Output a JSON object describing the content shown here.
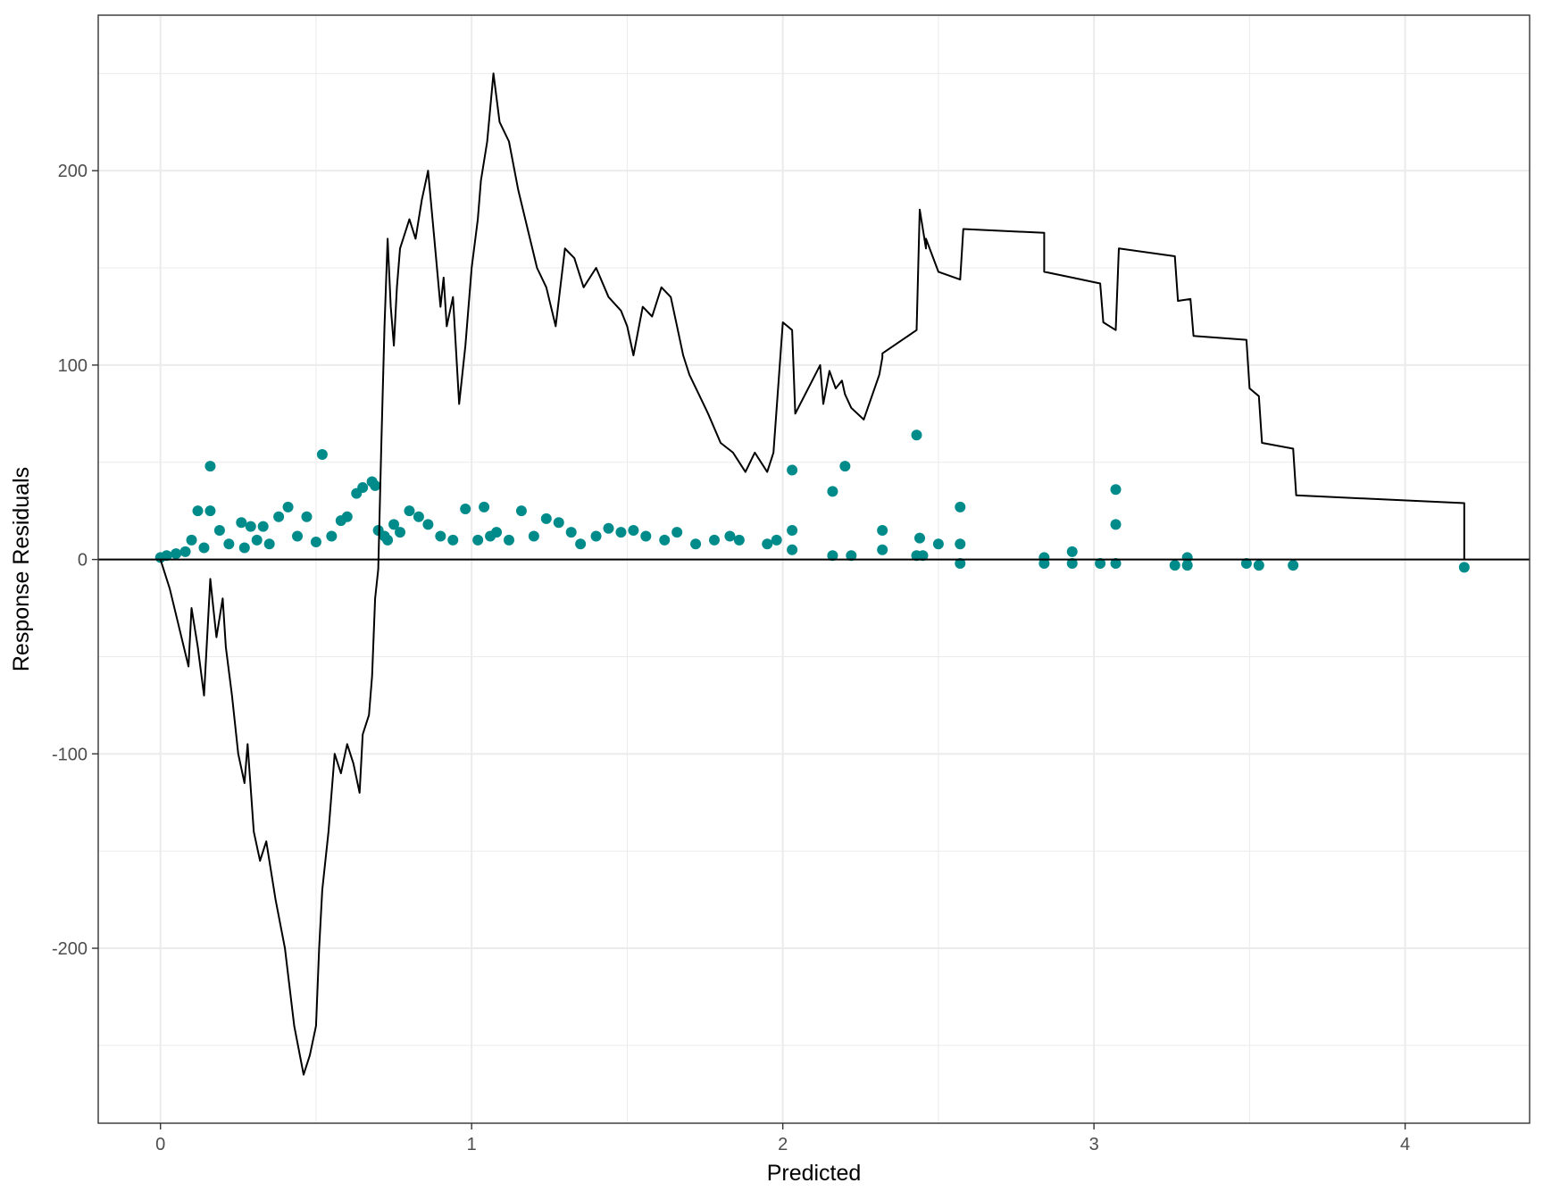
{
  "chart_data": {
    "type": "scatter",
    "title": "",
    "xlabel": "Predicted",
    "ylabel": "Response Residuals",
    "xlim": [
      -0.2,
      4.4
    ],
    "ylim": [
      -290,
      280
    ],
    "x_ticks": [
      0,
      1,
      2,
      3,
      4
    ],
    "y_ticks": [
      -200,
      -100,
      0,
      100,
      200
    ],
    "x_tick_labels": [
      "0",
      "1",
      "2",
      "3",
      "4"
    ],
    "y_tick_labels": [
      "-200",
      "-100",
      "0",
      "100",
      "200"
    ],
    "grid": true,
    "legend": "none",
    "reference_line_y": 0,
    "colors": {
      "points": "#008B8B",
      "line": "#000000",
      "grid": "#ebebeb",
      "panel_border": "#333333"
    },
    "series": [
      {
        "kind": "points",
        "x": [
          0.0,
          0.02,
          0.05,
          0.08,
          0.1,
          0.12,
          0.14,
          0.16,
          0.16,
          0.19,
          0.22,
          0.26,
          0.27,
          0.29,
          0.31,
          0.33,
          0.35,
          0.38,
          0.41,
          0.44,
          0.47,
          0.5,
          0.52,
          0.55,
          0.58,
          0.6,
          0.63,
          0.65,
          0.68,
          0.69,
          0.7,
          0.72,
          0.73,
          0.75,
          0.77,
          0.8,
          0.83,
          0.86,
          0.9,
          0.94,
          0.98,
          1.02,
          1.04,
          1.06,
          1.08,
          1.12,
          1.16,
          1.2,
          1.24,
          1.28,
          1.32,
          1.35,
          1.4,
          1.44,
          1.48,
          1.52,
          1.56,
          1.62,
          1.66,
          1.72,
          1.78,
          1.83,
          1.86,
          1.95,
          1.98,
          2.03,
          2.03,
          2.03,
          2.16,
          2.16,
          2.2,
          2.22,
          2.32,
          2.32,
          2.43,
          2.43,
          2.44,
          2.45,
          2.5,
          2.57,
          2.57,
          2.57,
          2.84,
          2.84,
          2.93,
          2.93,
          3.02,
          3.07,
          3.07,
          3.07,
          3.26,
          3.3,
          3.3,
          3.49,
          3.53,
          3.64,
          4.19
        ],
        "y": [
          1,
          2,
          3,
          4,
          10,
          25,
          6,
          48,
          25,
          15,
          8,
          19,
          6,
          17,
          10,
          17,
          8,
          22,
          27,
          12,
          22,
          9,
          54,
          12,
          20,
          22,
          34,
          37,
          40,
          38,
          15,
          12,
          10,
          18,
          14,
          25,
          22,
          18,
          12,
          10,
          26,
          10,
          27,
          12,
          14,
          10,
          25,
          12,
          21,
          19,
          14,
          8,
          12,
          16,
          14,
          15,
          12,
          10,
          14,
          8,
          10,
          12,
          10,
          8,
          10,
          46,
          15,
          5,
          35,
          2,
          48,
          2,
          15,
          5,
          64,
          2,
          11,
          2,
          8,
          27,
          8,
          -2,
          1,
          -2,
          4,
          -2,
          -2,
          36,
          18,
          -2,
          -3,
          1,
          -3,
          -2,
          -3,
          -3,
          -4
        ]
      },
      {
        "kind": "line",
        "x": [
          0.0,
          0.03,
          0.06,
          0.09,
          0.1,
          0.12,
          0.14,
          0.16,
          0.17,
          0.18,
          0.2,
          0.21,
          0.23,
          0.25,
          0.27,
          0.28,
          0.3,
          0.32,
          0.34,
          0.37,
          0.4,
          0.43,
          0.46,
          0.48,
          0.5,
          0.51,
          0.52,
          0.54,
          0.56,
          0.58,
          0.6,
          0.62,
          0.64,
          0.65,
          0.67,
          0.68,
          0.69,
          0.7,
          0.71,
          0.72,
          0.73,
          0.74,
          0.75,
          0.76,
          0.77,
          0.79,
          0.8,
          0.82,
          0.84,
          0.86,
          0.88,
          0.9,
          0.91,
          0.92,
          0.94,
          0.96,
          0.98,
          1.0,
          1.02,
          1.03,
          1.05,
          1.07,
          1.09,
          1.12,
          1.15,
          1.18,
          1.21,
          1.24,
          1.27,
          1.3,
          1.33,
          1.36,
          1.4,
          1.44,
          1.48,
          1.5,
          1.52,
          1.55,
          1.58,
          1.61,
          1.64,
          1.66,
          1.68,
          1.7,
          1.73,
          1.76,
          1.8,
          1.84,
          1.88,
          1.91,
          1.93,
          1.95,
          1.97,
          2.0,
          2.03,
          2.04,
          2.12,
          2.13,
          2.15,
          2.17,
          2.19,
          2.2,
          2.22,
          2.26,
          2.31,
          2.32,
          2.32,
          2.43,
          2.44,
          2.46,
          2.46,
          2.5,
          2.57,
          2.58,
          2.84,
          2.84,
          2.93,
          3.02,
          3.03,
          3.07,
          3.08,
          3.26,
          3.27,
          3.31,
          3.32,
          3.49,
          3.5,
          3.53,
          3.54,
          3.64,
          3.65,
          4.19,
          4.19
        ],
        "y": [
          0,
          -15,
          -35,
          -55,
          -25,
          -45,
          -70,
          -10,
          -25,
          -40,
          -20,
          -45,
          -70,
          -100,
          -115,
          -95,
          -140,
          -155,
          -145,
          -175,
          -200,
          -240,
          -265,
          -255,
          -240,
          -200,
          -170,
          -140,
          -100,
          -110,
          -95,
          -105,
          -120,
          -90,
          -80,
          -60,
          -20,
          -5,
          60,
          120,
          165,
          130,
          110,
          140,
          160,
          170,
          175,
          165,
          185,
          200,
          165,
          130,
          145,
          120,
          135,
          80,
          110,
          150,
          175,
          195,
          215,
          250,
          225,
          215,
          190,
          170,
          150,
          140,
          120,
          160,
          155,
          140,
          150,
          135,
          128,
          120,
          105,
          130,
          125,
          140,
          135,
          120,
          105,
          95,
          85,
          75,
          60,
          55,
          45,
          55,
          50,
          45,
          55,
          122,
          118,
          75,
          100,
          80,
          97,
          88,
          92,
          85,
          78,
          72,
          95,
          104,
          106,
          118,
          180,
          160,
          165,
          148,
          144,
          170,
          168,
          148,
          145,
          142,
          122,
          118,
          160,
          156,
          133,
          134,
          115,
          113,
          88,
          84,
          60,
          57,
          33,
          29,
          0
        ]
      }
    ]
  }
}
